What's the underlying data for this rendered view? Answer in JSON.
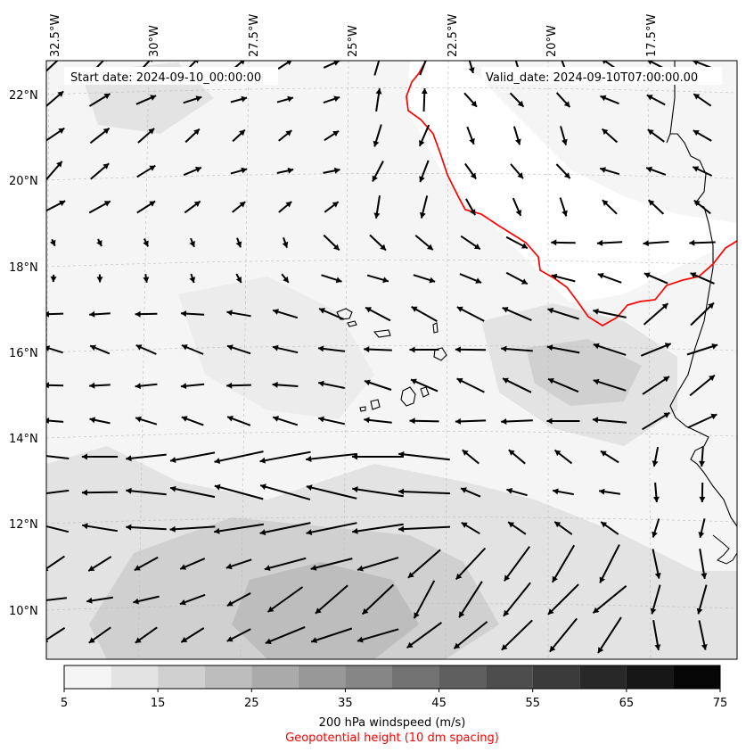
{
  "header": {
    "start_date": "Start date: 2024-09-10_00:00:00",
    "valid_date": "Valid_date: 2024-09-10T07:00:00.00"
  },
  "axes": {
    "lon_labels": [
      "32.5°W",
      "30°W",
      "27.5°W",
      "25°W",
      "22.5°W",
      "20°W",
      "17.5°W"
    ],
    "lat_labels": [
      "22°N",
      "20°N",
      "18°N",
      "16°N",
      "14°N",
      "12°N",
      "10°N"
    ]
  },
  "colorbar": {
    "tick_labels": [
      "5",
      "15",
      "25",
      "35",
      "45",
      "55",
      "65",
      "75"
    ],
    "bins": [
      5,
      10,
      15,
      20,
      25,
      30,
      35,
      40,
      45,
      50,
      55,
      60,
      65,
      70,
      75
    ],
    "colors": [
      "#f5f5f5",
      "#e3e3e3",
      "#d0d0d0",
      "#bdbdbd",
      "#aaaaaa",
      "#989898",
      "#868686",
      "#727272",
      "#5f5f5f",
      "#4d4d4d",
      "#3b3b3b",
      "#282828",
      "#171717",
      "#060606"
    ],
    "title": "200 hPa windspeed (m/s)",
    "subtitle": "Geopotential height (10 dm spacing)",
    "subtitle_color": "#ff0000"
  },
  "contour_color": "#ff0000"
}
